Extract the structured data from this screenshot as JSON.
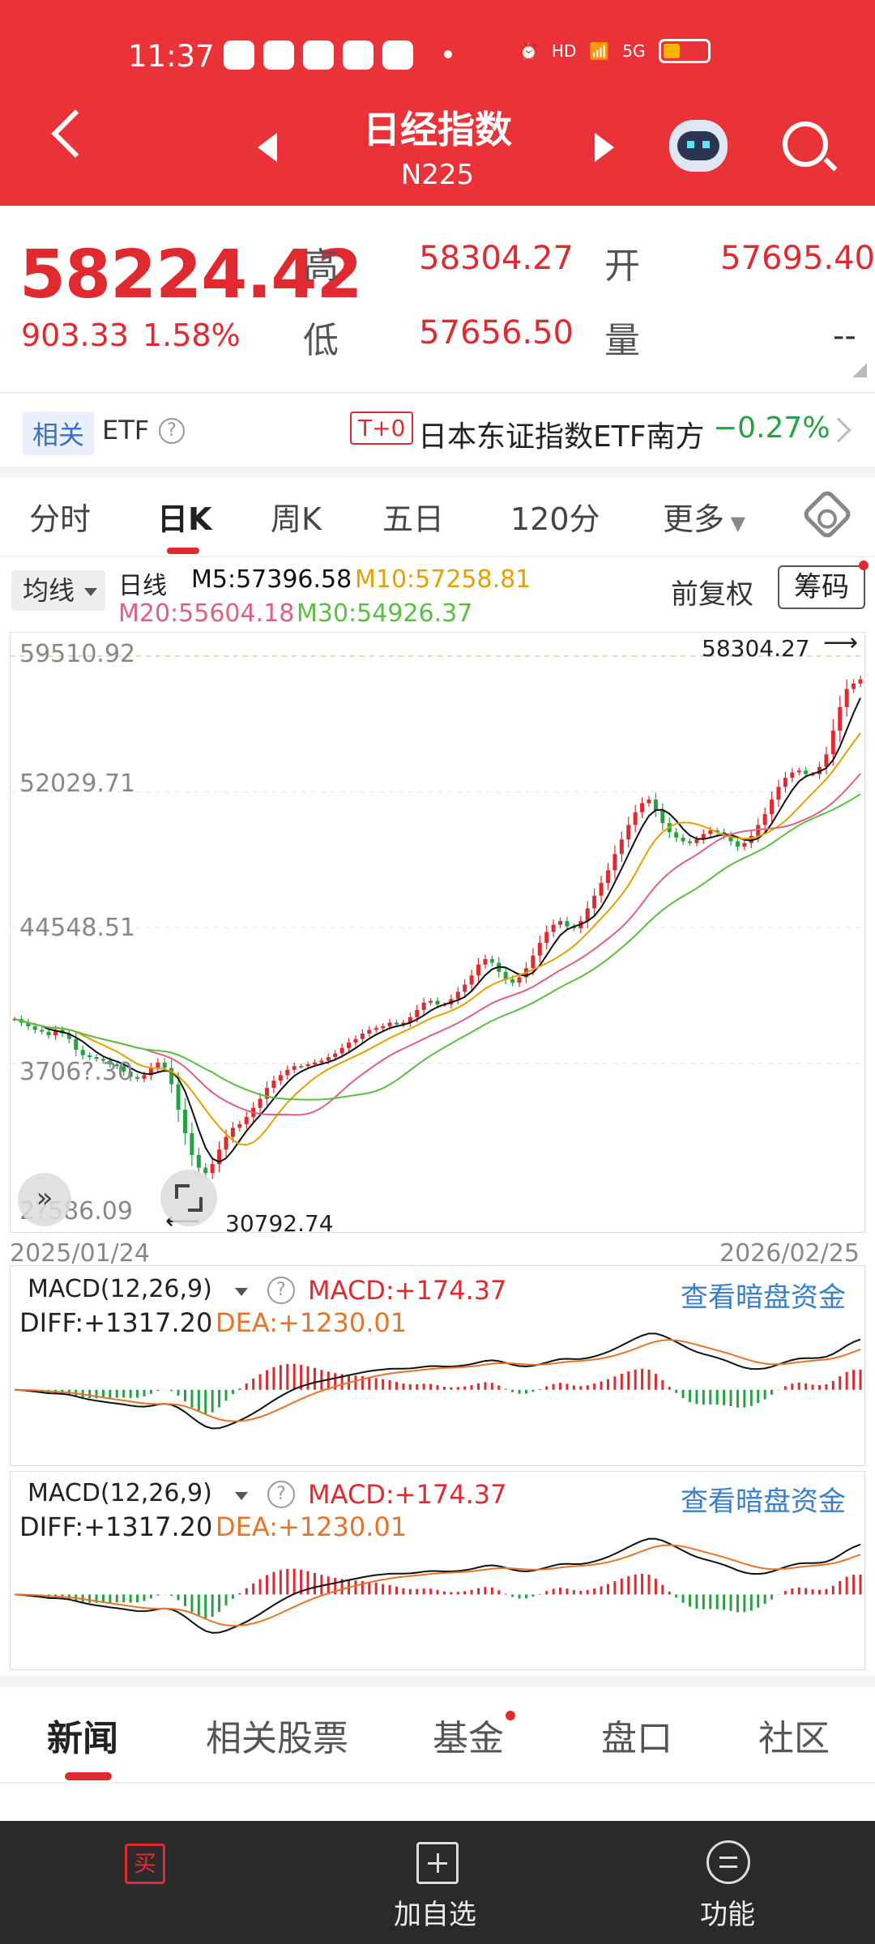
{
  "status": {
    "time": "11:37",
    "net": "5G"
  },
  "header": {
    "title": "日经指数",
    "subtitle": "N225"
  },
  "quote": {
    "price": "58224.42",
    "change": "903.33",
    "change_pct": "1.58%",
    "high_label": "高",
    "high": "58304.27",
    "open_label": "开",
    "open": "57695.40",
    "low_label": "低",
    "low": "57656.50",
    "vol_label": "量",
    "vol": "--"
  },
  "etf": {
    "label": "相关",
    "text": "ETF",
    "badge": "T+0",
    "name": "日本东证指数ETF南方",
    "pct": "−0.27%"
  },
  "ktabs": [
    "分时",
    "日K",
    "周K",
    "五日",
    "120分",
    "更多"
  ],
  "ma": {
    "btn": "均线",
    "type": "日线",
    "m5": "M5:57396.58",
    "m10": "M10:57258.81",
    "m20": "M20:55604.18",
    "m30": "M30:54926.37",
    "adj": "前复权",
    "chip": "筹码"
  },
  "chart": {
    "y_labels": [
      "59510.92",
      "52029.71",
      "44548.51",
      "3706?.30",
      "2?586.09"
    ],
    "high_anno": "58304.27",
    "low_anno": "30792.74",
    "date_start": "2025/01/24",
    "date_end": "2026/02/25"
  },
  "macd": {
    "name": "MACD(12,26,9)",
    "macd": "MACD:+174.37",
    "diff": "DIFF:+1317.20",
    "dea": "DEA:+1230.01",
    "link": "查看暗盘资金"
  },
  "bottom_tabs": [
    "新闻",
    "相关股票",
    "基金",
    "盘口",
    "社区"
  ],
  "bottom_bar": {
    "buy_icon": "买",
    "add": "加自选",
    "func": "功能"
  },
  "colors": {
    "red": "#e02a2f",
    "green": "#25a244",
    "ma5": "#111111",
    "ma10": "#e3a200",
    "ma20": "#e06080",
    "ma30": "#5bbf3f",
    "dea": "#e8742a"
  },
  "chart_data": {
    "type": "candlestick",
    "title": "日K",
    "x_start": "2025/01/24",
    "x_end": "2026/02/25",
    "close": [
      39500,
      39300,
      39100,
      38900,
      38800,
      38600,
      38900,
      38700,
      38400,
      37800,
      37500,
      37400,
      37300,
      37200,
      37000,
      36900,
      36600,
      36300,
      36200,
      36400,
      36800,
      37100,
      36800,
      35900,
      34500,
      33200,
      32000,
      31300,
      31000,
      31500,
      32300,
      33000,
      33500,
      33700,
      34100,
      34600,
      35100,
      35700,
      36100,
      36400,
      36700,
      36900,
      36900,
      37000,
      37100,
      37200,
      37400,
      37600,
      37900,
      38200,
      38400,
      38700,
      38900,
      39000,
      39100,
      39300,
      39200,
      39300,
      39600,
      40000,
      40400,
      40500,
      40300,
      40300,
      40600,
      41000,
      41400,
      41900,
      42500,
      42800,
      42600,
      42100,
      41700,
      41500,
      41800,
      42300,
      43000,
      43700,
      44300,
      44700,
      44900,
      44600,
      44500,
      44900,
      45600,
      46300,
      47000,
      47700,
      48600,
      49400,
      50200,
      50900,
      51400,
      51600,
      51000,
      50300,
      49800,
      49500,
      49300,
      49200,
      49400,
      49700,
      49900,
      49800,
      49600,
      49300,
      49000,
      49200,
      49600,
      50200,
      50800,
      51600,
      52300,
      52800,
      53100,
      53200,
      53000,
      53000,
      53400,
      54100,
      55400,
      56700,
      57700,
      58000,
      58224
    ]
  }
}
